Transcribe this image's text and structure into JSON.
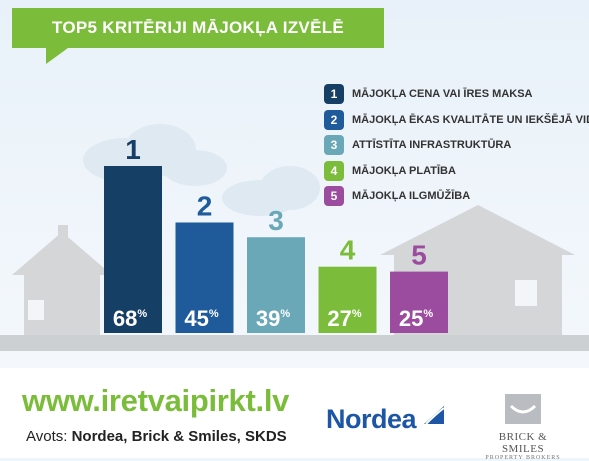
{
  "title": "TOP5 KRITĒRIJI MĀJOKĻA IZVĒLĒ",
  "chart_data": {
    "type": "bar",
    "categories": [
      "1",
      "2",
      "3",
      "4",
      "5"
    ],
    "values": [
      68,
      45,
      39,
      27,
      25
    ],
    "value_labels": [
      "68",
      "45",
      "39",
      "27",
      "25"
    ],
    "unit": "%",
    "series": [
      {
        "label": "MĀJOKĻA CENA VAI ĪRES MAKSA",
        "value": 68,
        "color": "#163f66"
      },
      {
        "label": "MĀJOKĻA ĒKAS KVALITĀTE UN IEKŠĒJĀ VIDE",
        "value": 45,
        "color": "#1f5b9a"
      },
      {
        "label": "ATTĪSTĪTA INFRASTRUKTŪRA",
        "value": 39,
        "color": "#6aa8b8"
      },
      {
        "label": "MĀJOKĻA PLATĪBA",
        "value": 27,
        "color": "#7bbd3b"
      },
      {
        "label": "MĀJOKĻA ILGMŪŽĪBA",
        "value": 25,
        "color": "#9c4c9f"
      }
    ],
    "legend_position": "top-right"
  },
  "footer": {
    "url": "www.iretvaipirkt.lv",
    "source_prefix": "Avots: ",
    "source_names": "Nordea, Brick & Smiles, SKDS"
  },
  "logos": {
    "nordea": "Nordea",
    "bs_name": "BRICK & SMILES",
    "bs_sub": "PROPERTY BROKERS"
  }
}
